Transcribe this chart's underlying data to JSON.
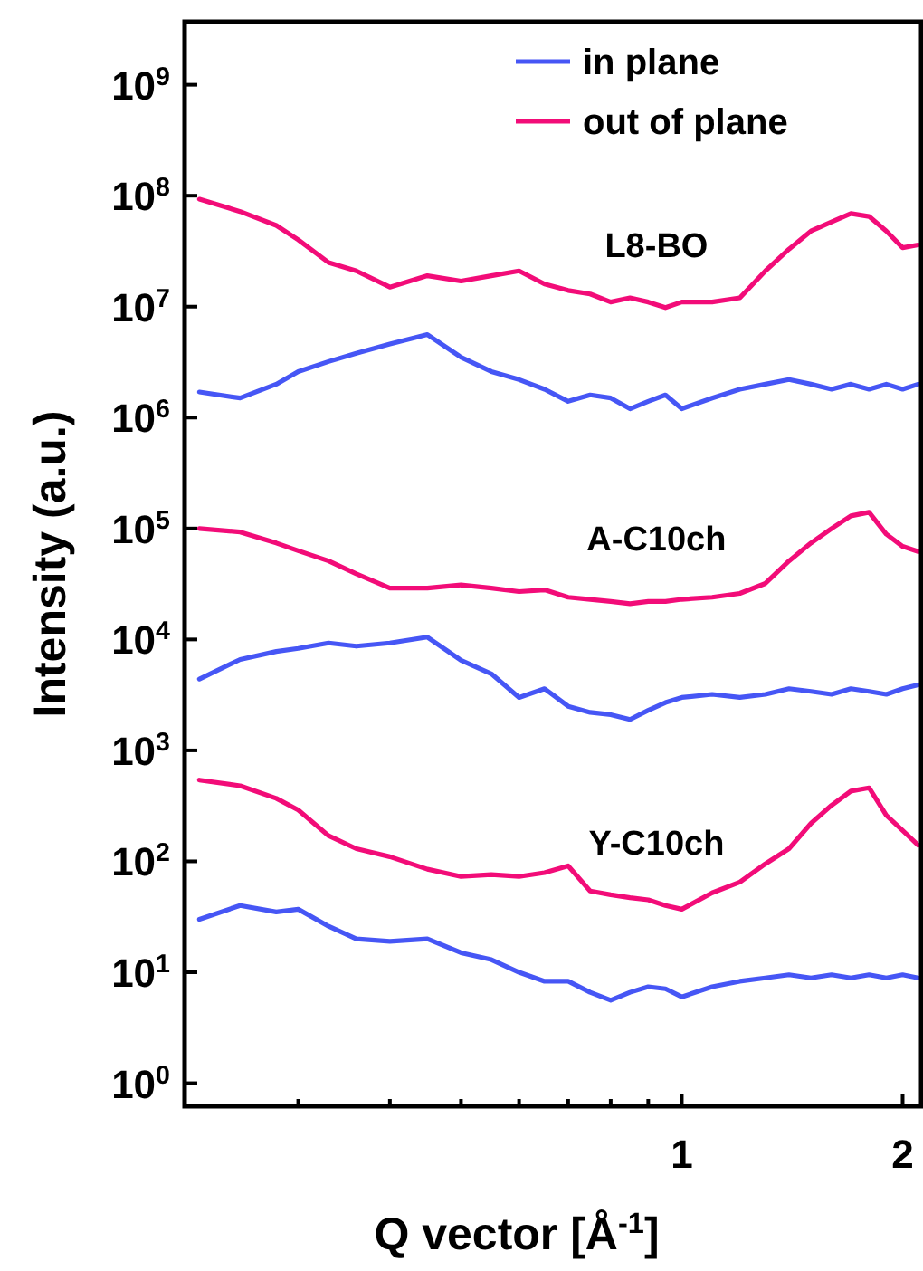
{
  "chart_data": {
    "type": "line",
    "xlabel": "Q vector [Å$^{-1}$]",
    "ylabel": "Intensity (a.u.)",
    "log": "xy",
    "legend": "top right",
    "grid": false,
    "line_style": "solid",
    "marker": "none",
    "xlim": [
      0.21,
      2.12
    ],
    "ylim": [
      0.62,
      3700000000.0
    ],
    "xticks": [
      {
        "value": 0.3,
        "label": null
      },
      {
        "value": 0.4,
        "label": null
      },
      {
        "value": 0.5,
        "label": null
      },
      {
        "value": 0.6,
        "label": null
      },
      {
        "value": 0.7,
        "label": null
      },
      {
        "value": 0.8,
        "label": null
      },
      {
        "value": 0.9,
        "label": null
      },
      1,
      2
    ],
    "yticks": [
      {
        "value": 1,
        "label": "10$^{0}$"
      },
      {
        "value": 10,
        "label": "10$^{1}$"
      },
      {
        "value": 100,
        "label": "10$^{2}$"
      },
      {
        "value": 1000,
        "label": "10$^{3}$"
      },
      {
        "value": 10000,
        "label": "10$^{4}$"
      },
      {
        "value": 100000,
        "label": "10$^{5}$"
      },
      {
        "value": 1000000,
        "label": "10$^{6}$"
      },
      {
        "value": 10000000,
        "label": "10$^{7}$"
      },
      {
        "value": 100000000,
        "label": "10$^{8}$"
      },
      {
        "value": 1000000000,
        "label": "10$^{9}$"
      }
    ],
    "x": [
      0.22,
      0.25,
      0.28,
      0.3,
      0.33,
      0.36,
      0.4,
      0.45,
      0.5,
      0.55,
      0.6,
      0.65,
      0.7,
      0.75,
      0.8,
      0.85,
      0.9,
      0.95,
      1.0,
      1.1,
      1.2,
      1.3,
      1.4,
      1.5,
      1.6,
      1.7,
      1.8,
      1.9,
      2.0,
      2.1
    ],
    "series": [
      {
        "name": "in plane",
        "color": "#4656f5",
        "values": [
          1700000.0,
          1500000.0,
          2000000.0,
          2600000.0,
          3200000.0,
          3800000.0,
          4600000.0,
          5600000.0,
          3500000.0,
          2600000.0,
          2200000.0,
          1800000.0,
          1400000.0,
          1600000.0,
          1500000.0,
          1200000.0,
          1400000.0,
          1600000.0,
          1200000.0,
          1500000.0,
          1800000.0,
          2000000.0,
          2200000.0,
          2000000.0,
          1800000.0,
          2000000.0,
          1800000.0,
          2000000.0,
          1800000.0,
          2000000.0
        ]
      },
      {
        "name": "out of plane",
        "color": "#f20c78",
        "values": [
          93000000.0,
          72000000.0,
          54000000.0,
          40000000.0,
          25000000.0,
          21000000.0,
          15000000.0,
          19000000.0,
          17000000.0,
          19000000.0,
          21000000.0,
          16000000.0,
          14000000.0,
          13000000.0,
          11000000.0,
          12000000.0,
          11000000.0,
          9800000.0,
          11000000.0,
          11000000.0,
          12000000.0,
          21000000.0,
          33000000.0,
          48000000.0,
          58000000.0,
          69000000.0,
          65000000.0,
          48000000.0,
          34000000.0,
          36000000.0
        ]
      },
      {
        "color": "#4656f5",
        "values": [
          4400.0,
          6600.0,
          7800.0,
          8300.0,
          9300.0,
          8700.0,
          9300.0,
          10500.0,
          6500.0,
          4900.0,
          3000.0,
          3600.0,
          2500.0,
          2200.0,
          2100.0,
          1900.0,
          2300.0,
          2700.0,
          3000.0,
          3200.0,
          3000.0,
          3200.0,
          3600.0,
          3400.0,
          3200.0,
          3600.0,
          3400.0,
          3200.0,
          3600.0,
          3900.0
        ]
      },
      {
        "color": "#f20c78",
        "values": [
          100000.0,
          93000.0,
          74000.0,
          63000.0,
          51000.0,
          39000.0,
          29000.0,
          29000.0,
          31000.0,
          29000.0,
          27000.0,
          28000.0,
          24000.0,
          23000.0,
          22000.0,
          21000.0,
          22000.0,
          22000.0,
          23000.0,
          24000.0,
          26000.0,
          32000.0,
          51000.0,
          74000.0,
          100000.0,
          130000.0,
          140000.0,
          89000.0,
          69000.0,
          62000.0
        ]
      },
      {
        "color": "#4656f5",
        "values": [
          30,
          40,
          35,
          37,
          26,
          20,
          19,
          20,
          15,
          13,
          10,
          8.3,
          8.3,
          6.6,
          5.6,
          6.6,
          7.4,
          7.1,
          6.0,
          7.4,
          8.3,
          8.9,
          9.5,
          8.9,
          9.5,
          8.9,
          9.5,
          8.9,
          9.5,
          8.9
        ]
      },
      {
        "color": "#f20c78",
        "values": [
          540,
          480,
          370,
          290,
          170,
          130,
          110,
          85,
          73,
          76,
          73,
          79,
          91,
          54,
          50,
          47,
          45,
          40,
          37,
          52,
          65,
          95,
          130,
          220,
          320,
          430,
          460,
          260,
          190,
          140
        ]
      }
    ],
    "annotations": [
      "L8-BO",
      "A-C10ch",
      "Y-C10ch"
    ]
  }
}
